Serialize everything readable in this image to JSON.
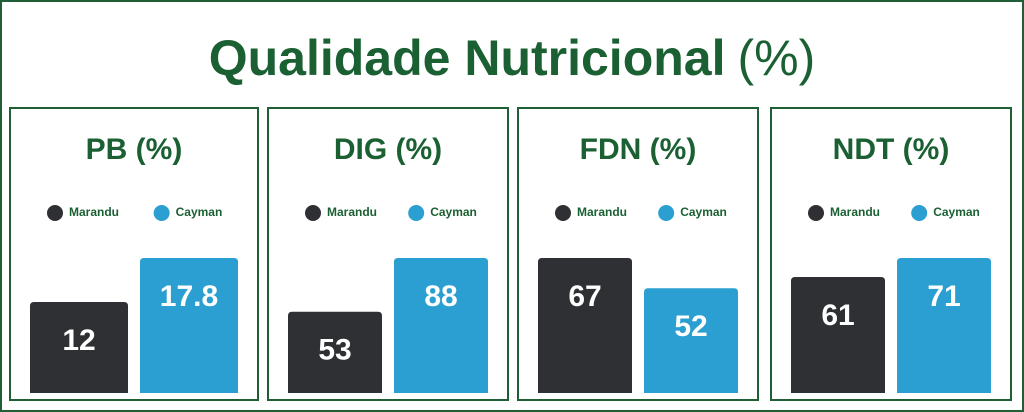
{
  "title": "Qualidade Nutricional",
  "title_unit": "(%)",
  "chart_data": [
    {
      "type": "bar",
      "title": "PB (%)",
      "series": [
        {
          "name": "Marandu",
          "color": "#2e3034",
          "values": [
            12
          ]
        },
        {
          "name": "Cayman",
          "color": "#2b9fd1",
          "values": [
            17.8
          ]
        }
      ]
    },
    {
      "type": "bar",
      "title": "DIG (%)",
      "series": [
        {
          "name": "Marandu",
          "color": "#2e3034",
          "values": [
            53
          ]
        },
        {
          "name": "Cayman",
          "color": "#2b9fd1",
          "values": [
            88
          ]
        }
      ]
    },
    {
      "type": "bar",
      "title": "FDN (%)",
      "series": [
        {
          "name": "Marandu",
          "color": "#2e3034",
          "values": [
            67
          ]
        },
        {
          "name": "Cayman",
          "color": "#2b9fd1",
          "values": [
            52
          ]
        }
      ]
    },
    {
      "type": "bar",
      "title": "NDT (%)",
      "series": [
        {
          "name": "Marandu",
          "color": "#2e3034",
          "values": [
            61
          ]
        },
        {
          "name": "Cayman",
          "color": "#2b9fd1",
          "values": [
            71
          ]
        }
      ]
    }
  ]
}
